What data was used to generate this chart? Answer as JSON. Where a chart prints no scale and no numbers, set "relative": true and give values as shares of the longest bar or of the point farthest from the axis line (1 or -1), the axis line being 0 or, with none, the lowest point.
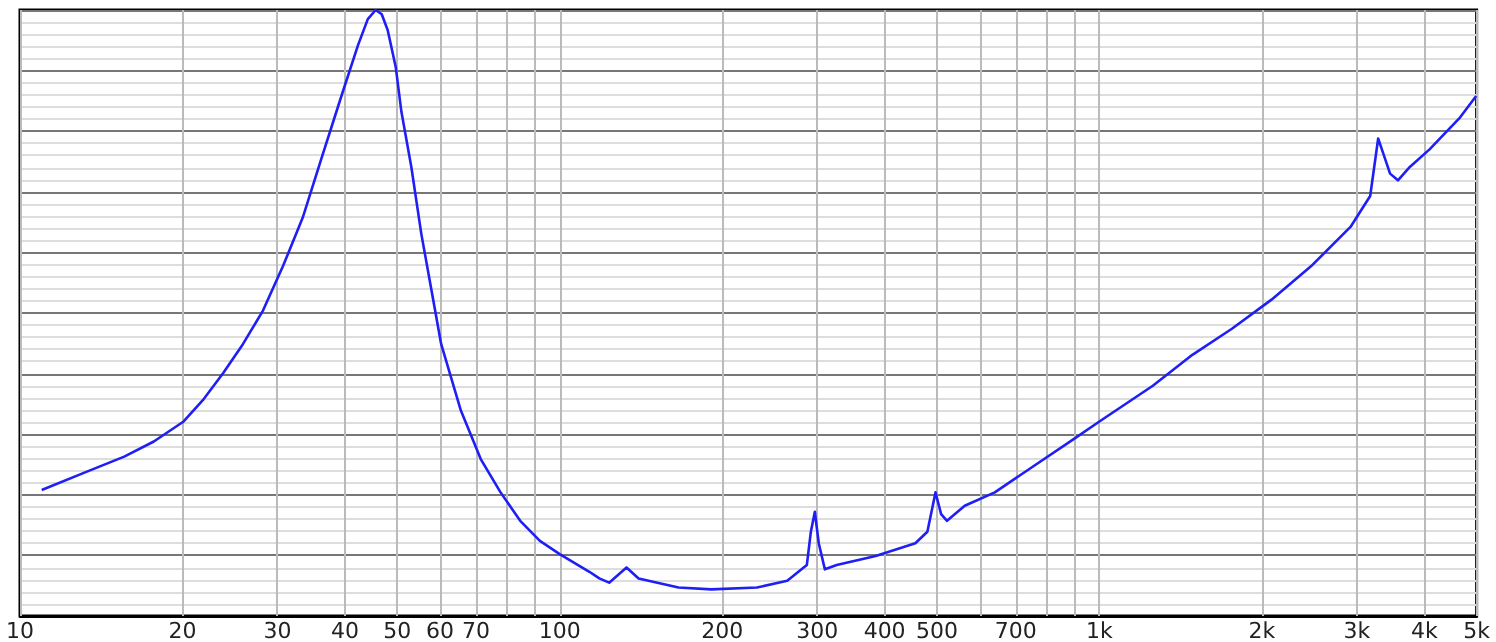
{
  "chart_data": {
    "type": "line",
    "relative": true,
    "log": "x",
    "grid": true,
    "color": "#1f1ff5",
    "xlim": [
      10,
      5000
    ],
    "xticks": [
      10,
      20,
      30,
      40,
      50,
      60,
      70,
      {
        "value": 80,
        "label": null
      },
      {
        "value": 90,
        "label": null
      },
      100,
      200,
      300,
      400,
      500,
      {
        "value": 600,
        "label": null
      },
      700,
      {
        "value": 800,
        "label": null
      },
      {
        "value": 900,
        "label": null
      },
      {
        "value": 1000,
        "label": "1k"
      },
      {
        "value": 2000,
        "label": "2k"
      },
      {
        "value": 3000,
        "label": "3k"
      },
      {
        "value": 4000,
        "label": "4k"
      },
      {
        "value": 5000,
        "label": "5k"
      }
    ],
    "x": [
      10.97,
      13.2,
      15.6,
      17.7,
      20.1,
      21.9,
      23.8,
      25.9,
      28.2,
      30.7,
      33.4,
      36.3,
      39.5,
      42.3,
      44.1,
      45.6,
      46.8,
      48.0,
      49.7,
      50.9,
      53.1,
      55.4,
      57.8,
      60.3,
      65.6,
      71.4,
      77.7,
      84.5,
      91.9,
      100,
      113.5,
      118.4,
      123.5,
      133,
      140,
      166,
      191,
      232,
      264,
      287,
      292,
      297,
      302,
      310,
      326,
      385,
      456,
      480,
      497,
      509,
      522,
      563,
      640,
      757,
      896,
      1000,
      1256,
      1487,
      1760,
      2084,
      2466,
      2919,
      3175,
      3285,
      3370,
      3456,
      3574,
      3760,
      4090,
      4642,
      4990
    ],
    "values": [
      0.208,
      0.237,
      0.263,
      0.288,
      0.321,
      0.358,
      0.401,
      0.449,
      0.504,
      0.577,
      0.657,
      0.759,
      0.861,
      0.942,
      0.985,
      1,
      0.993,
      0.967,
      0.905,
      0.832,
      0.741,
      0.631,
      0.54,
      0.449,
      0.339,
      0.259,
      0.204,
      0.157,
      0.124,
      0.102,
      0.073,
      0.062,
      0.055,
      0.08,
      0.062,
      0.047,
      0.044,
      0.047,
      0.058,
      0.084,
      0.139,
      0.172,
      0.12,
      0.077,
      0.084,
      0.099,
      0.12,
      0.139,
      0.204,
      0.168,
      0.157,
      0.182,
      0.204,
      0.248,
      0.292,
      0.321,
      0.38,
      0.431,
      0.474,
      0.522,
      0.577,
      0.642,
      0.693,
      0.788,
      0.759,
      0.73,
      0.719,
      0.741,
      0.77,
      0.821,
      0.858
    ]
  }
}
